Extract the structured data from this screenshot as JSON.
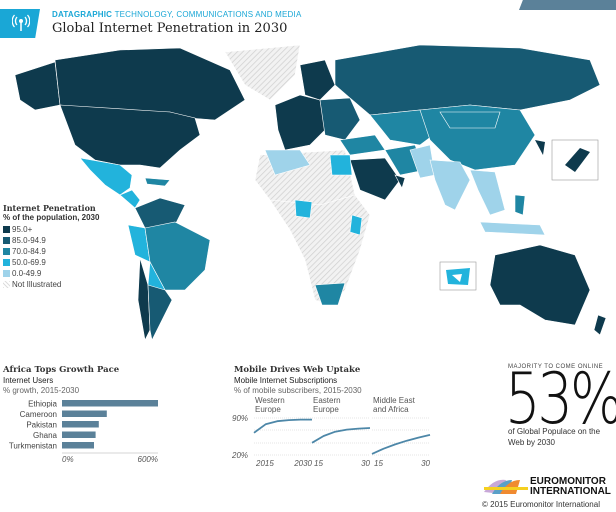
{
  "header": {
    "kicker_bold": "DATAGRAPHIC",
    "kicker": "TECHNOLOGY, COMMUNICATIONS AND MEDIA",
    "title": "Global Internet Penetration in 2030",
    "icon": "broadcast-antenna-icon",
    "accent": "#1aa7d6"
  },
  "legend": {
    "title": "Internet Penetration",
    "subtitle": "% of the population, 2030",
    "items": [
      {
        "label": "95.0+",
        "color": "#0e3a4d"
      },
      {
        "label": "85.0-94.9",
        "color": "#175a73"
      },
      {
        "label": "70.0-84.9",
        "color": "#1f86a3"
      },
      {
        "label": "50.0-69.9",
        "color": "#22b3dc"
      },
      {
        "label": "0.0-49.9",
        "color": "#9fd3ea"
      },
      {
        "label": "Not Illustrated",
        "color": "hatched"
      }
    ]
  },
  "chart_data": [
    {
      "type": "bar",
      "title": "Africa Tops Growth Pace",
      "subtitle": "Internet Users",
      "ylabel": "% growth, 2015-2030",
      "categories": [
        "Ethiopia",
        "Cameroon",
        "Pakistan",
        "Ghana",
        "Turkmenistan"
      ],
      "values": [
        600,
        280,
        230,
        210,
        200
      ],
      "xlim": [
        0,
        600
      ],
      "tick_labels": [
        "0%",
        "600%"
      ],
      "color": "#5b8199"
    },
    {
      "type": "line",
      "title": "Mobile Drives Web Uptake",
      "subtitle": "Mobile Internet Subscriptions",
      "ylabel": "% of mobile subscribers, 2015-2030",
      "ylim": [
        20,
        90
      ],
      "ytick_labels": [
        "90%",
        "20%"
      ],
      "color": "#4d87a8",
      "panels": [
        {
          "name": "Western Europe",
          "x": [
            2015,
            2018,
            2021,
            2024,
            2027,
            2030
          ],
          "y": [
            62,
            78,
            84,
            86,
            87,
            87
          ],
          "xtick_labels": [
            "2015",
            "2030"
          ]
        },
        {
          "name": "Eastern Europe",
          "x": [
            2015,
            2018,
            2021,
            2024,
            2027,
            2030
          ],
          "y": [
            43,
            56,
            64,
            68,
            70,
            71
          ],
          "xtick_labels": [
            "15",
            "30"
          ]
        },
        {
          "name": "Middle East and Africa",
          "x": [
            2015,
            2018,
            2021,
            2024,
            2027,
            2030
          ],
          "y": [
            22,
            32,
            40,
            47,
            53,
            58
          ],
          "xtick_labels": [
            "15",
            "30"
          ]
        }
      ]
    }
  ],
  "callout": {
    "kicker": "MAJORITY TO COME ONLINE",
    "value": "53%",
    "text": "of Global Populace on the Web by 2030"
  },
  "footer": {
    "logo_line1": "EUROMONITOR",
    "logo_line2": "INTERNATIONAL",
    "copyright": "© 2015 Euromonitor International"
  }
}
